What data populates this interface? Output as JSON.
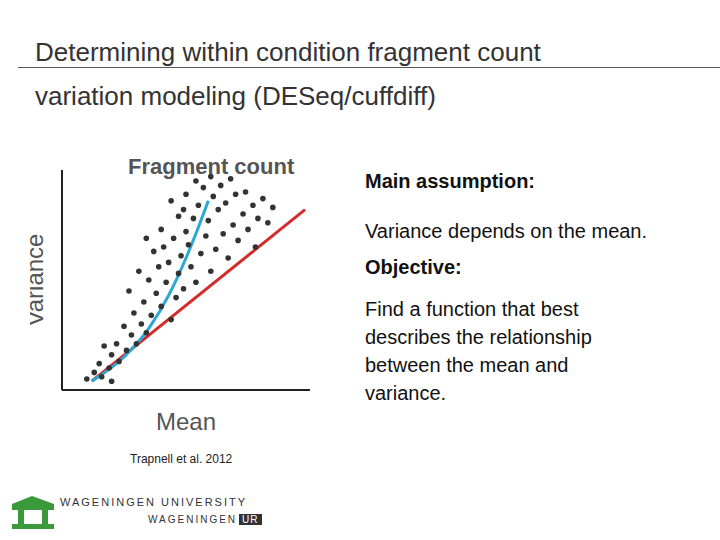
{
  "slide": {
    "title_lines": [
      "Determining within condition fragment count",
      "variation modeling (DESeq/cuffdiff)"
    ],
    "text": [
      {
        "text": "Main assumption:",
        "bold": true
      },
      {
        "text": "Variance depends on the mean.",
        "bold": false
      },
      {
        "text": "Objective:",
        "bold": true
      },
      {
        "text": "Find a function that best",
        "bold": false
      },
      {
        "text": "describes the relationship",
        "bold": false
      },
      {
        "text": "between the mean and",
        "bold": false
      },
      {
        "text": "variance.",
        "bold": false
      }
    ],
    "citation": "Trapnell et al.  2012",
    "logo": {
      "line1": "WAGENINGEN UNIVERSITY",
      "line2": "WAGENINGEN",
      "line2_box": "UR"
    }
  },
  "chart_data": {
    "type": "scatter",
    "title": "Fragment count",
    "x_label": "Mean",
    "y_label": "Variance",
    "xlim": [
      0,
      10
    ],
    "ylim": [
      0,
      10
    ],
    "tick_labels": false,
    "grid": false,
    "series": [
      {
        "type": "scatter",
        "color": "#333333",
        "marker": "circle",
        "x": [
          1.0,
          1.3,
          1.6,
          1.5,
          1.9,
          2.0,
          2.3,
          2.2,
          2.6,
          2.8,
          2.5,
          3.0,
          3.2,
          2.9,
          3.4,
          3.6,
          3.3,
          3.8,
          3.5,
          4.0,
          4.2,
          3.9,
          4.4,
          4.6,
          4.3,
          4.1,
          4.7,
          4.9,
          4.5,
          4.8,
          5.0,
          5.2,
          5.4,
          5.1,
          5.3,
          4.7,
          5.6,
          5.8,
          5.5,
          6.0,
          6.2,
          5.9,
          6.3,
          6.5,
          6.1,
          6.7,
          6.9,
          6.6,
          7.1,
          7.3,
          7.0,
          7.5,
          7.7,
          7.4,
          7.9,
          8.1,
          7.8,
          8.3,
          4.4,
          5.0,
          5.7,
          6.4,
          6.8,
          4.9,
          3.7,
          3.1,
          2.7,
          6.0,
          5.4,
          8.5,
          2.0,
          1.7,
          4.0,
          3.4
        ],
        "y": [
          0.5,
          0.8,
          0.6,
          1.2,
          1.0,
          1.6,
          1.3,
          2.1,
          1.8,
          2.5,
          2.9,
          2.1,
          3.0,
          3.5,
          2.6,
          3.4,
          4.0,
          4.4,
          5.0,
          3.8,
          4.9,
          5.6,
          3.2,
          4.2,
          5.8,
          6.5,
          5.3,
          4.6,
          6.9,
          6.1,
          7.2,
          5.6,
          4.9,
          6.6,
          7.8,
          7.9,
          6.2,
          7.0,
          8.4,
          5.4,
          6.4,
          7.7,
          8.2,
          7.1,
          8.8,
          6.0,
          7.5,
          8.5,
          6.8,
          8.0,
          8.9,
          7.3,
          8.4,
          9.0,
          7.8,
          8.7,
          6.5,
          7.6,
          8.6,
          8.9,
          9.2,
          9.3,
          9.6,
          8.2,
          6.3,
          5.4,
          4.5,
          9.7,
          9.5,
          8.3,
          0.4,
          2.0,
          7.3,
          6.9
        ]
      },
      {
        "type": "line",
        "color": "#d42a2a",
        "line_style": "solid",
        "x": [
          1.2,
          9.8
        ],
        "y": [
          0.4,
          8.2
        ]
      },
      {
        "type": "curve",
        "color": "#2aa6d9",
        "line_style": "solid",
        "x": [
          1.2,
          2.5,
          3.5,
          4.3,
          5.0,
          5.5,
          5.9
        ],
        "y": [
          0.4,
          1.5,
          2.8,
          4.3,
          6.0,
          7.4,
          8.6
        ]
      }
    ]
  }
}
